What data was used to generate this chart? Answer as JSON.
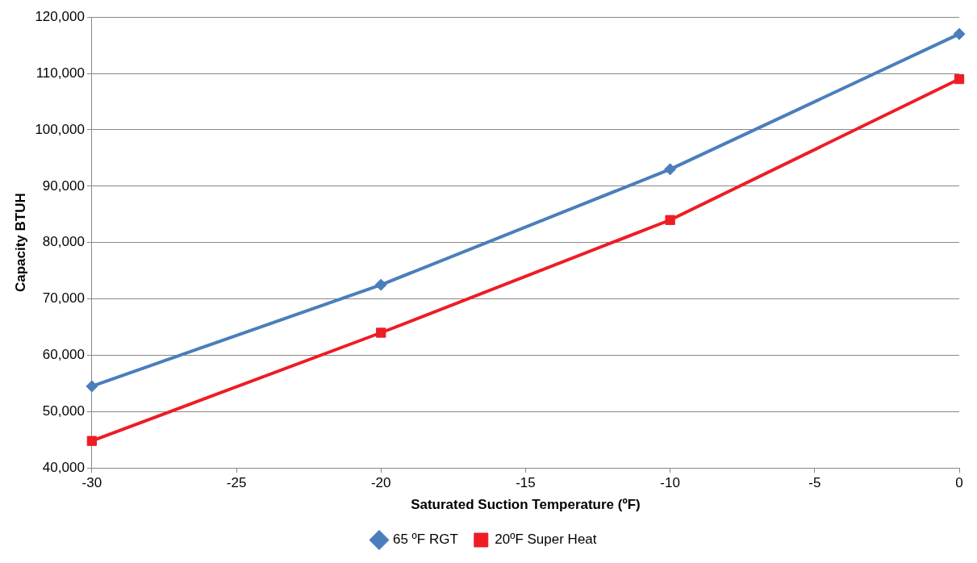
{
  "chart_data": {
    "type": "line",
    "xlabel": "Saturated Suction Temperature (ºF)",
    "ylabel": "Capacity BTUH",
    "x": [
      -30,
      -20,
      -10,
      0
    ],
    "series": [
      {
        "name": "65 ºF RGT",
        "color": "#4a7ebb",
        "values": [
          54500,
          72500,
          93000,
          117000
        ],
        "marker": "diamond"
      },
      {
        "name": "20ºF Super Heat",
        "color": "#ee1c25",
        "values": [
          44800,
          64000,
          84000,
          109000
        ],
        "marker": "square"
      }
    ],
    "xlim": [
      -30,
      0
    ],
    "xticks": [
      -30,
      -25,
      -20,
      -15,
      -10,
      -5,
      0
    ],
    "ylim": [
      40000,
      120000
    ],
    "yticks": [
      {
        "value": 40000,
        "label": "40,000"
      },
      {
        "value": 50000,
        "label": "50,000"
      },
      {
        "value": 60000,
        "label": "60,000"
      },
      {
        "value": 70000,
        "label": "70,000"
      },
      {
        "value": 80000,
        "label": "80,000"
      },
      {
        "value": 90000,
        "label": "90,000"
      },
      {
        "value": 100000,
        "label": "100,000"
      },
      {
        "value": 110000,
        "label": "110,000"
      },
      {
        "value": 120000,
        "label": "120,000"
      }
    ],
    "grid": "y",
    "legend": "bottom",
    "line_style": "solid"
  }
}
